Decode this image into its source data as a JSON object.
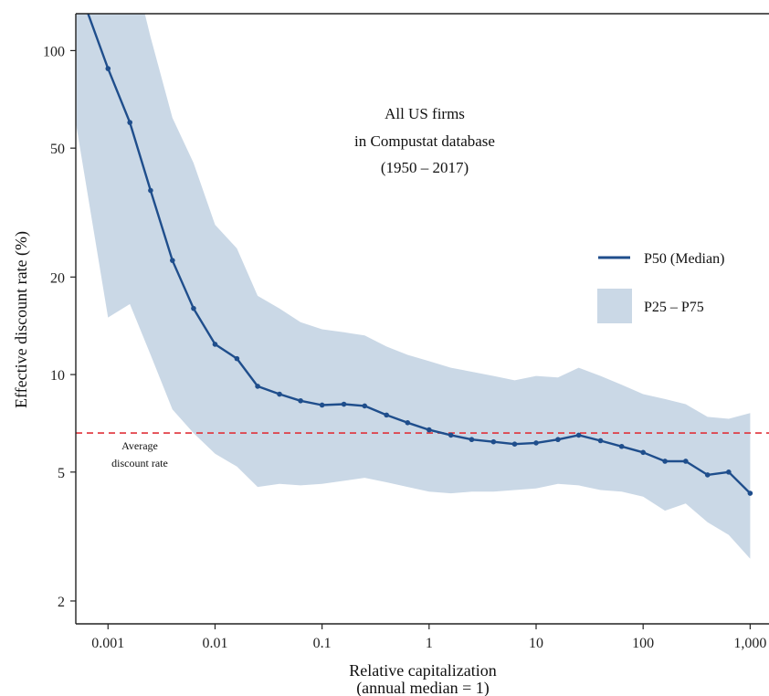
{
  "chart_data": {
    "type": "line",
    "title_lines": [
      "All US firms",
      "in Compustat database",
      "(1950 – 2017)"
    ],
    "xlabel": "Relative capitalization",
    "xlabel_sub": "(annual median = 1)",
    "ylabel": "Effective discount rate (%)",
    "x_scale": "log",
    "y_scale": "log",
    "xlim": [
      0.0005,
      1500
    ],
    "ylim": [
      1.7,
      130
    ],
    "x_ticks": [
      0.001,
      0.01,
      0.1,
      1,
      10,
      100,
      1000
    ],
    "x_tick_labels": [
      "0.001",
      "0.01",
      "0.1",
      "1",
      "10",
      "100",
      "1,000"
    ],
    "y_ticks": [
      2,
      5,
      10,
      20,
      50,
      100
    ],
    "y_tick_labels": [
      "2",
      "5",
      "10",
      "20",
      "50",
      "100"
    ],
    "grid": false,
    "legend_position": "right",
    "series": [
      {
        "name": "P50 (Median)",
        "color": "#1f4e8c",
        "x": [
          0.0006,
          0.001,
          0.0016,
          0.0025,
          0.004,
          0.0063,
          0.01,
          0.016,
          0.025,
          0.04,
          0.063,
          0.1,
          0.16,
          0.25,
          0.4,
          0.63,
          1,
          1.6,
          2.5,
          4,
          6.3,
          10,
          16,
          25,
          40,
          63,
          100,
          160,
          250,
          400,
          630,
          1000
        ],
        "y": [
          140,
          88,
          60,
          37,
          22.5,
          16,
          12.4,
          11.2,
          9.2,
          8.7,
          8.3,
          8.05,
          8.1,
          8.0,
          7.5,
          7.1,
          6.75,
          6.5,
          6.3,
          6.2,
          6.1,
          6.15,
          6.3,
          6.5,
          6.25,
          6.0,
          5.75,
          5.4,
          5.4,
          4.9,
          5.0,
          4.3
        ]
      }
    ],
    "band": {
      "name": "P25 – P75",
      "color": "#cad8e6",
      "x": [
        0.0005,
        0.001,
        0.0016,
        0.0025,
        0.004,
        0.0063,
        0.01,
        0.016,
        0.025,
        0.04,
        0.063,
        0.1,
        0.16,
        0.25,
        0.4,
        0.63,
        1,
        1.6,
        2.5,
        4,
        6.3,
        10,
        16,
        25,
        40,
        63,
        100,
        160,
        250,
        400,
        630,
        1000
      ],
      "upper": [
        200,
        200,
        200,
        110,
        62,
        45,
        29,
        24.5,
        17.5,
        16,
        14.5,
        13.8,
        13.5,
        13.2,
        12.2,
        11.5,
        11.0,
        10.5,
        10.2,
        9.9,
        9.6,
        9.9,
        9.8,
        10.5,
        9.9,
        9.3,
        8.7,
        8.4,
        8.1,
        7.4,
        7.3,
        7.6
      ],
      "lower": [
        60,
        15,
        16.5,
        11.5,
        7.8,
        6.6,
        5.7,
        5.2,
        4.5,
        4.6,
        4.55,
        4.6,
        4.7,
        4.8,
        4.65,
        4.5,
        4.35,
        4.3,
        4.35,
        4.35,
        4.4,
        4.45,
        4.6,
        4.55,
        4.4,
        4.35,
        4.2,
        3.8,
        4.0,
        3.5,
        3.2,
        2.7
      ]
    },
    "reference_line": {
      "y": 6.6,
      "color": "#e0323a",
      "label_lines": [
        "Average",
        "discount rate"
      ]
    }
  }
}
